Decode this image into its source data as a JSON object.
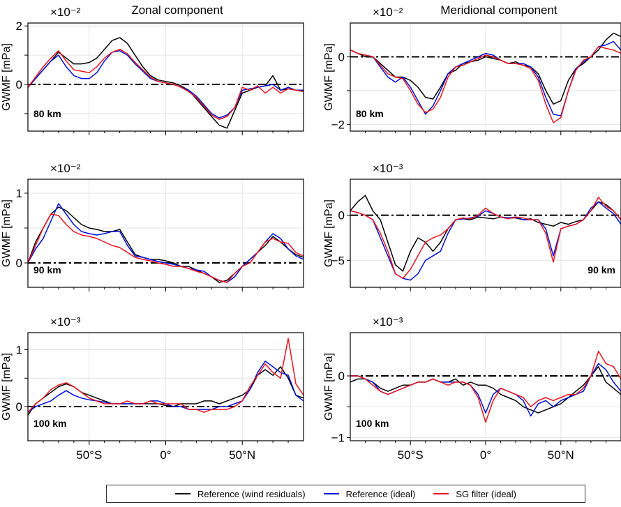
{
  "column_titles": [
    "Zonal component",
    "Meridional component"
  ],
  "legend": [
    {
      "label": "Reference (wind residuals)",
      "color": "#000000"
    },
    {
      "label": "Reference (ideal)",
      "color": "#0010d8"
    },
    {
      "label": "SG filter (ideal)",
      "color": "#e8141e"
    }
  ],
  "chart_data": [
    {
      "type": "line",
      "title": "Zonal component",
      "altitude_label": "80 km",
      "ylabel": "GWMF [mPa]",
      "exponent": "×10⁻²",
      "xlim": [
        -90,
        90
      ],
      "ylim": [
        -1.6,
        2.1
      ],
      "yticks": [
        -1,
        0,
        1,
        2
      ],
      "ytick_labels": [
        "",
        "0",
        "",
        "2"
      ],
      "x": [
        -90,
        -85,
        -80,
        -75,
        -70,
        -65,
        -60,
        -55,
        -50,
        -45,
        -40,
        -35,
        -30,
        -25,
        -20,
        -15,
        -10,
        -5,
        0,
        5,
        10,
        15,
        20,
        25,
        30,
        35,
        40,
        45,
        50,
        55,
        60,
        65,
        70,
        75,
        80,
        85,
        90
      ],
      "series": [
        {
          "name": "Reference (wind residuals)",
          "values": [
            -0.1,
            0.2,
            0.5,
            0.8,
            1.1,
            0.9,
            0.7,
            0.7,
            0.75,
            0.9,
            1.2,
            1.5,
            1.6,
            1.4,
            1.0,
            0.6,
            0.3,
            0.15,
            0.1,
            0.05,
            -0.05,
            -0.2,
            -0.5,
            -0.8,
            -1.1,
            -1.4,
            -1.5,
            -0.9,
            -0.3,
            -0.2,
            -0.1,
            -0.05,
            0.3,
            -0.2,
            -0.15,
            -0.2,
            -0.2
          ]
        },
        {
          "name": "Reference (ideal)",
          "values": [
            -0.1,
            0.2,
            0.5,
            0.8,
            1.0,
            0.6,
            0.3,
            0.2,
            0.2,
            0.4,
            0.8,
            1.1,
            1.15,
            1.0,
            0.7,
            0.45,
            0.2,
            0.1,
            0.05,
            0.0,
            -0.1,
            -0.2,
            -0.4,
            -0.7,
            -1.0,
            -1.15,
            -1.05,
            -0.8,
            -0.2,
            -0.15,
            -0.1,
            -0.05,
            0.0,
            -0.2,
            -0.1,
            -0.2,
            -0.2
          ]
        },
        {
          "name": "SG filter (ideal)",
          "values": [
            -0.1,
            0.25,
            0.6,
            0.9,
            1.15,
            0.8,
            0.5,
            0.45,
            0.4,
            0.6,
            0.9,
            1.1,
            1.2,
            1.05,
            0.75,
            0.5,
            0.25,
            0.1,
            0.05,
            0.0,
            -0.1,
            -0.25,
            -0.45,
            -0.75,
            -1.05,
            -1.2,
            -1.1,
            -0.8,
            -0.1,
            -0.2,
            -0.05,
            -0.3,
            -0.1,
            -0.3,
            -0.15,
            -0.2,
            -0.25
          ]
        }
      ]
    },
    {
      "type": "line",
      "title": "Meridional component",
      "altitude_label": "80 km",
      "ylabel": "GWMF [mPa]",
      "exponent": "×10⁻²",
      "xlim": [
        -90,
        90
      ],
      "ylim": [
        -2.2,
        1.0
      ],
      "yticks": [
        -2,
        -1,
        0
      ],
      "ytick_labels": [
        "−2",
        "",
        "0"
      ],
      "x": [
        -90,
        -85,
        -80,
        -75,
        -70,
        -65,
        -60,
        -55,
        -50,
        -45,
        -40,
        -35,
        -30,
        -25,
        -20,
        -15,
        -10,
        -5,
        0,
        5,
        10,
        15,
        20,
        25,
        30,
        35,
        40,
        45,
        50,
        55,
        60,
        65,
        70,
        75,
        80,
        85,
        90
      ],
      "series": [
        {
          "name": "Reference (wind residuals)",
          "values": [
            0.2,
            0.1,
            0.0,
            0.0,
            -0.2,
            -0.4,
            -0.6,
            -0.6,
            -0.7,
            -0.9,
            -1.2,
            -1.25,
            -0.9,
            -0.5,
            -0.4,
            -0.2,
            -0.15,
            -0.1,
            0.0,
            -0.05,
            -0.1,
            -0.2,
            -0.15,
            -0.25,
            -0.3,
            -0.5,
            -1.0,
            -1.4,
            -1.3,
            -0.7,
            -0.35,
            -0.2,
            0.0,
            0.2,
            0.5,
            0.7,
            0.6
          ]
        },
        {
          "name": "Reference (ideal)",
          "values": [
            0.2,
            0.1,
            0.05,
            0.0,
            -0.3,
            -0.6,
            -0.75,
            -0.6,
            -0.9,
            -1.3,
            -1.7,
            -1.45,
            -1.0,
            -0.5,
            -0.3,
            -0.2,
            -0.1,
            0.0,
            0.1,
            0.05,
            -0.1,
            -0.2,
            -0.2,
            -0.2,
            -0.3,
            -0.6,
            -1.2,
            -1.7,
            -1.75,
            -1.0,
            -0.35,
            -0.15,
            0.0,
            0.3,
            0.35,
            0.45,
            0.2
          ]
        },
        {
          "name": "SG filter (ideal)",
          "values": [
            0.2,
            0.1,
            0.05,
            0.0,
            -0.25,
            -0.5,
            -0.6,
            -0.65,
            -1.0,
            -1.4,
            -1.65,
            -1.55,
            -1.2,
            -0.6,
            -0.3,
            -0.25,
            -0.15,
            -0.05,
            0.05,
            0.0,
            -0.1,
            -0.2,
            -0.2,
            -0.25,
            -0.35,
            -0.7,
            -1.4,
            -1.95,
            -1.8,
            -1.0,
            -0.4,
            -0.1,
            0.0,
            0.3,
            0.25,
            0.2,
            0.1
          ]
        }
      ]
    },
    {
      "type": "line",
      "title": "",
      "altitude_label": "90 km",
      "ylabel": "GWMF [mPa]",
      "exponent": "×10⁻²",
      "xlim": [
        -90,
        90
      ],
      "ylim": [
        -0.35,
        1.2
      ],
      "yticks": [
        0,
        0.5,
        1
      ],
      "ytick_labels": [
        "0",
        "",
        "1"
      ],
      "x": [
        -90,
        -85,
        -80,
        -75,
        -70,
        -65,
        -60,
        -55,
        -50,
        -45,
        -40,
        -35,
        -30,
        -25,
        -20,
        -15,
        -10,
        -5,
        0,
        5,
        10,
        15,
        20,
        25,
        30,
        35,
        40,
        45,
        50,
        55,
        60,
        65,
        70,
        75,
        80,
        85,
        90
      ],
      "series": [
        {
          "name": "Reference (wind residuals)",
          "values": [
            0.0,
            0.3,
            0.5,
            0.7,
            0.8,
            0.75,
            0.65,
            0.55,
            0.5,
            0.48,
            0.45,
            0.45,
            0.48,
            0.3,
            0.12,
            0.08,
            0.05,
            0.05,
            0.03,
            0.0,
            -0.05,
            -0.05,
            -0.1,
            -0.15,
            -0.2,
            -0.28,
            -0.25,
            -0.15,
            -0.05,
            0.05,
            0.15,
            0.25,
            0.38,
            0.3,
            0.2,
            0.12,
            0.08
          ]
        },
        {
          "name": "Reference (ideal)",
          "values": [
            0.0,
            0.2,
            0.35,
            0.6,
            0.85,
            0.7,
            0.55,
            0.45,
            0.42,
            0.4,
            0.42,
            0.45,
            0.45,
            0.25,
            0.1,
            0.08,
            0.05,
            0.02,
            0.0,
            -0.02,
            -0.05,
            -0.08,
            -0.1,
            -0.12,
            -0.2,
            -0.25,
            -0.28,
            -0.2,
            -0.05,
            0.05,
            0.15,
            0.3,
            0.42,
            0.35,
            0.2,
            0.1,
            0.05
          ]
        },
        {
          "name": "SG filter (ideal)",
          "values": [
            0.0,
            0.25,
            0.5,
            0.7,
            0.68,
            0.55,
            0.45,
            0.4,
            0.38,
            0.35,
            0.3,
            0.25,
            0.22,
            0.15,
            0.08,
            0.05,
            0.03,
            0.0,
            -0.02,
            -0.05,
            -0.05,
            -0.08,
            -0.12,
            -0.15,
            -0.2,
            -0.25,
            -0.28,
            -0.15,
            -0.05,
            0.0,
            0.15,
            0.3,
            0.35,
            0.3,
            0.28,
            0.15,
            0.1
          ]
        }
      ]
    },
    {
      "type": "line",
      "title": "",
      "altitude_label": "90 km",
      "ylabel": "GWMF [mPa]",
      "exponent": "×10⁻³",
      "xlim": [
        -90,
        90
      ],
      "ylim": [
        -8,
        4
      ],
      "yticks": [
        -5,
        0
      ],
      "ytick_labels": [
        "−5",
        "0"
      ],
      "x": [
        -90,
        -85,
        -80,
        -75,
        -70,
        -65,
        -60,
        -55,
        -50,
        -45,
        -40,
        -35,
        -30,
        -25,
        -20,
        -15,
        -10,
        -5,
        0,
        5,
        10,
        15,
        20,
        25,
        30,
        35,
        40,
        45,
        50,
        55,
        60,
        65,
        70,
        75,
        80,
        85,
        90
      ],
      "series": [
        {
          "name": "Reference (wind residuals)",
          "values": [
            0.5,
            1.5,
            2.2,
            0.5,
            -0.5,
            -3.0,
            -5.5,
            -6.2,
            -4.0,
            -2.5,
            -3.0,
            -4.0,
            -3.0,
            -1.5,
            -0.5,
            -0.4,
            -0.5,
            -0.2,
            -0.3,
            -0.4,
            -0.2,
            -0.3,
            -0.3,
            -0.5,
            -0.4,
            -0.8,
            -1.0,
            -1.2,
            -0.8,
            -1.0,
            -0.7,
            -0.5,
            0.5,
            1.5,
            1.2,
            0.5,
            -0.5
          ]
        },
        {
          "name": "Reference (ideal)",
          "values": [
            0.5,
            0.3,
            0.0,
            -0.5,
            -2.5,
            -4.5,
            -6.5,
            -7.0,
            -7.2,
            -6.5,
            -5.0,
            -4.5,
            -4.0,
            -2.0,
            -0.5,
            -0.4,
            -0.3,
            -0.1,
            0.5,
            0.2,
            -0.2,
            -0.3,
            -0.2,
            -0.5,
            -0.5,
            -0.5,
            -1.5,
            -4.5,
            -1.5,
            -1.2,
            -1.0,
            -0.5,
            0.8,
            1.5,
            0.8,
            0.2,
            -1.0
          ]
        },
        {
          "name": "SG filter (ideal)",
          "values": [
            0.5,
            0.3,
            0.0,
            -0.5,
            -2.0,
            -4.0,
            -6.5,
            -7.0,
            -6.0,
            -4.5,
            -3.0,
            -2.5,
            -2.2,
            -1.5,
            -0.5,
            -0.3,
            -0.4,
            0.0,
            0.8,
            0.2,
            -0.2,
            -0.4,
            -0.2,
            -0.3,
            -0.5,
            -0.5,
            -2.0,
            -5.2,
            -1.5,
            -1.2,
            -1.0,
            -0.5,
            0.5,
            2.0,
            1.0,
            0.5,
            -0.5
          ]
        }
      ]
    },
    {
      "type": "line",
      "title": "",
      "altitude_label": "100 km",
      "ylabel": "GWMF [mPa]",
      "exponent": "×10⁻³",
      "xlim": [
        -90,
        90
      ],
      "ylim": [
        -0.6,
        1.3
      ],
      "yticks": [
        0,
        0.5,
        1
      ],
      "ytick_labels": [
        "0",
        "",
        "1"
      ],
      "x": [
        -90,
        -85,
        -80,
        -75,
        -70,
        -65,
        -60,
        -55,
        -50,
        -45,
        -40,
        -35,
        -30,
        -25,
        -20,
        -15,
        -10,
        -5,
        0,
        5,
        10,
        15,
        20,
        25,
        30,
        35,
        40,
        45,
        50,
        55,
        60,
        65,
        70,
        75,
        80,
        85,
        90
      ],
      "series": [
        {
          "name": "Reference (wind residuals)",
          "values": [
            -0.15,
            0.05,
            0.15,
            0.25,
            0.35,
            0.4,
            0.35,
            0.25,
            0.2,
            0.15,
            0.1,
            0.05,
            0.05,
            0.05,
            0.05,
            0.05,
            0.05,
            0.05,
            0.02,
            0.0,
            0.05,
            0.05,
            0.05,
            0.1,
            0.1,
            0.05,
            0.1,
            0.15,
            0.2,
            0.3,
            0.55,
            0.65,
            0.55,
            0.7,
            0.5,
            0.2,
            0.15
          ]
        },
        {
          "name": "Reference (ideal)",
          "values": [
            -0.1,
            0.0,
            0.05,
            0.1,
            0.2,
            0.28,
            0.2,
            0.15,
            0.12,
            0.1,
            0.08,
            0.05,
            0.05,
            0.05,
            0.05,
            0.05,
            0.1,
            0.1,
            0.05,
            0.0,
            0.0,
            -0.05,
            -0.05,
            -0.05,
            -0.05,
            0.0,
            0.0,
            0.05,
            0.1,
            0.3,
            0.6,
            0.8,
            0.7,
            0.6,
            0.55,
            0.2,
            0.1
          ]
        },
        {
          "name": "SG filter (ideal)",
          "values": [
            -0.1,
            0.05,
            0.15,
            0.3,
            0.38,
            0.42,
            0.35,
            0.25,
            0.15,
            0.1,
            0.05,
            0.05,
            0.05,
            0.1,
            0.05,
            0.05,
            0.1,
            0.05,
            0.05,
            0.05,
            0.05,
            -0.05,
            -0.05,
            -0.1,
            -0.05,
            -0.05,
            -0.05,
            0.0,
            0.1,
            0.35,
            0.55,
            0.75,
            0.6,
            0.5,
            1.2,
            0.4,
            0.2
          ]
        }
      ]
    },
    {
      "type": "line",
      "title": "",
      "altitude_label": "100 km",
      "ylabel": "GWMF [mPa]",
      "exponent": "×10⁻³",
      "xlim": [
        -90,
        90
      ],
      "ylim": [
        -1.05,
        0.7
      ],
      "yticks": [
        -1,
        -0.5,
        0
      ],
      "ytick_labels": [
        "−1",
        "",
        "0"
      ],
      "x": [
        -90,
        -85,
        -80,
        -75,
        -70,
        -65,
        -60,
        -55,
        -50,
        -45,
        -40,
        -35,
        -30,
        -25,
        -20,
        -15,
        -10,
        -5,
        0,
        5,
        10,
        15,
        20,
        25,
        30,
        35,
        40,
        45,
        50,
        55,
        60,
        65,
        70,
        75,
        80,
        85,
        90
      ],
      "series": [
        {
          "name": "Reference (wind residuals)",
          "values": [
            -0.1,
            -0.05,
            -0.05,
            -0.1,
            -0.2,
            -0.25,
            -0.2,
            -0.15,
            -0.15,
            -0.1,
            -0.1,
            -0.05,
            -0.1,
            -0.1,
            -0.05,
            -0.15,
            -0.1,
            -0.15,
            -0.15,
            -0.2,
            -0.3,
            -0.35,
            -0.4,
            -0.5,
            -0.55,
            -0.6,
            -0.55,
            -0.5,
            -0.45,
            -0.35,
            -0.25,
            -0.15,
            0.0,
            0.15,
            -0.1,
            -0.2,
            -0.3
          ]
        },
        {
          "name": "Reference (ideal)",
          "values": [
            0.0,
            0.0,
            -0.05,
            -0.1,
            -0.25,
            -0.3,
            -0.25,
            -0.2,
            -0.15,
            -0.1,
            -0.1,
            -0.05,
            -0.1,
            -0.1,
            -0.1,
            -0.1,
            -0.15,
            -0.3,
            -0.6,
            -0.3,
            -0.2,
            -0.25,
            -0.3,
            -0.4,
            -0.65,
            -0.45,
            -0.4,
            -0.5,
            -0.4,
            -0.35,
            -0.3,
            -0.25,
            0.0,
            0.2,
            0.1,
            -0.1,
            -0.25
          ]
        },
        {
          "name": "SG filter (ideal)",
          "values": [
            0.0,
            0.0,
            -0.05,
            -0.15,
            -0.25,
            -0.3,
            -0.25,
            -0.2,
            -0.15,
            -0.1,
            -0.1,
            -0.05,
            -0.1,
            -0.15,
            -0.1,
            -0.1,
            -0.15,
            -0.35,
            -0.75,
            -0.4,
            -0.2,
            -0.25,
            -0.3,
            -0.35,
            -0.5,
            -0.4,
            -0.35,
            -0.4,
            -0.35,
            -0.3,
            -0.3,
            -0.2,
            0.0,
            0.4,
            0.2,
            0.15,
            -0.05
          ]
        }
      ]
    }
  ],
  "xaxis": {
    "ticks": [
      -50,
      0,
      50
    ],
    "tick_labels": [
      "50°S",
      "0°",
      "50°N"
    ]
  }
}
